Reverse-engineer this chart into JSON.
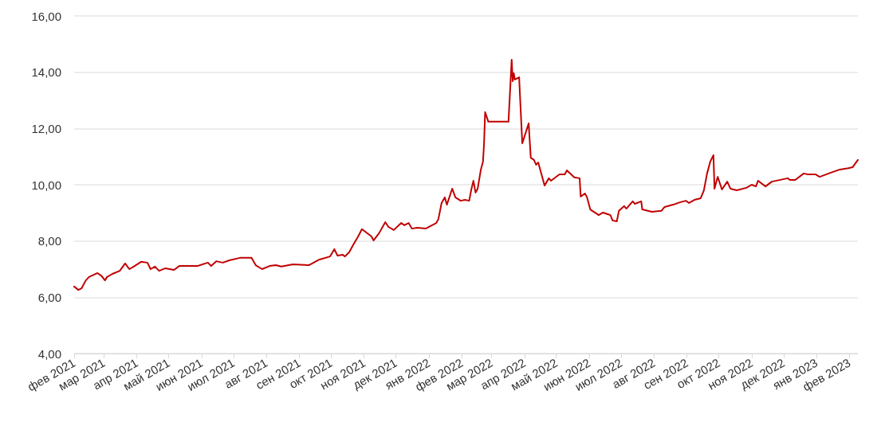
{
  "chart_data": {
    "type": "line",
    "x": [
      "2021-02-01",
      "2021-02-05",
      "2021-02-08",
      "2021-02-12",
      "2021-02-15",
      "2021-02-23",
      "2021-02-27",
      "2021-03-02",
      "2021-03-04",
      "2021-03-09",
      "2021-03-16",
      "2021-03-21",
      "2021-03-25",
      "2021-03-29",
      "2021-04-05",
      "2021-04-11",
      "2021-04-14",
      "2021-04-18",
      "2021-04-22",
      "2021-04-28",
      "2021-05-06",
      "2021-05-11",
      "2021-05-28",
      "2021-06-07",
      "2021-06-10",
      "2021-06-15",
      "2021-06-21",
      "2021-06-27",
      "2021-07-07",
      "2021-07-18",
      "2021-07-22",
      "2021-07-28",
      "2021-08-04",
      "2021-08-10",
      "2021-08-15",
      "2021-08-26",
      "2021-09-10",
      "2021-09-20",
      "2021-09-30",
      "2021-10-04",
      "2021-10-07",
      "2021-10-12",
      "2021-10-14",
      "2021-10-18",
      "2021-10-22",
      "2021-10-26",
      "2021-10-30",
      "2021-11-08",
      "2021-11-10",
      "2021-11-15",
      "2021-11-21",
      "2021-11-24",
      "2021-11-29",
      "2021-12-06",
      "2021-12-09",
      "2021-12-13",
      "2021-12-16",
      "2021-12-21",
      "2021-12-29",
      "2022-01-08",
      "2022-01-10",
      "2022-01-13",
      "2022-01-16",
      "2022-01-18",
      "2022-01-23",
      "2022-01-26",
      "2022-01-31",
      "2022-02-04",
      "2022-02-08",
      "2022-02-10",
      "2022-02-12",
      "2022-02-14",
      "2022-02-16",
      "2022-02-19",
      "2022-02-21",
      "2022-02-22",
      "2022-02-23",
      "2022-02-26",
      "2022-03-17",
      "2022-03-20",
      "2022-03-21",
      "2022-03-22",
      "2022-03-23",
      "2022-03-27",
      "2022-03-30",
      "2022-04-05",
      "2022-04-07",
      "2022-04-10",
      "2022-04-12",
      "2022-04-14",
      "2022-04-20",
      "2022-04-24",
      "2022-04-26",
      "2022-05-04",
      "2022-05-09",
      "2022-05-11",
      "2022-05-18",
      "2022-05-23",
      "2022-05-24",
      "2022-05-28",
      "2022-05-30",
      "2022-06-02",
      "2022-06-10",
      "2022-06-14",
      "2022-06-21",
      "2022-06-23",
      "2022-06-27",
      "2022-06-29",
      "2022-07-04",
      "2022-07-06",
      "2022-07-12",
      "2022-07-14",
      "2022-07-20",
      "2022-07-21",
      "2022-07-30",
      "2022-08-08",
      "2022-08-11",
      "2022-08-19",
      "2022-08-26",
      "2022-08-31",
      "2022-09-03",
      "2022-09-08",
      "2022-09-14",
      "2022-09-17",
      "2022-09-20",
      "2022-09-23",
      "2022-09-26",
      "2022-09-27",
      "2022-09-30",
      "2022-10-04",
      "2022-10-09",
      "2022-10-12",
      "2022-10-18",
      "2022-10-27",
      "2022-11-01",
      "2022-11-05",
      "2022-11-07",
      "2022-11-14",
      "2022-11-20",
      "2022-12-05",
      "2022-12-07",
      "2022-12-12",
      "2022-12-20",
      "2022-12-24",
      "2022-12-31",
      "2023-01-04",
      "2023-01-14",
      "2023-01-23",
      "2023-01-31",
      "2023-02-04",
      "2023-02-09"
    ],
    "series": [
      {
        "color": "#c00000",
        "values": [
          6.38,
          6.26,
          6.32,
          6.6,
          6.72,
          6.86,
          6.75,
          6.6,
          6.72,
          6.83,
          6.94,
          7.2,
          7.0,
          7.09,
          7.26,
          7.23,
          7.0,
          7.09,
          6.94,
          7.03,
          6.97,
          7.11,
          7.11,
          7.23,
          7.11,
          7.28,
          7.23,
          7.31,
          7.4,
          7.4,
          7.14,
          7.0,
          7.11,
          7.14,
          7.09,
          7.17,
          7.14,
          7.34,
          7.45,
          7.71,
          7.48,
          7.51,
          7.45,
          7.6,
          7.88,
          8.13,
          8.42,
          8.16,
          8.02,
          8.27,
          8.67,
          8.5,
          8.39,
          8.64,
          8.56,
          8.64,
          8.44,
          8.47,
          8.44,
          8.64,
          8.78,
          9.35,
          9.55,
          9.29,
          9.86,
          9.55,
          9.43,
          9.46,
          9.43,
          9.83,
          10.14,
          9.72,
          9.86,
          10.54,
          10.82,
          11.47,
          12.58,
          12.24,
          12.24,
          14.44,
          13.68,
          13.96,
          13.74,
          13.82,
          11.47,
          12.18,
          10.96,
          10.88,
          10.71,
          10.79,
          9.97,
          10.23,
          10.14,
          10.37,
          10.37,
          10.51,
          10.26,
          10.23,
          9.58,
          9.69,
          9.55,
          9.12,
          8.92,
          9.01,
          8.92,
          8.73,
          8.7,
          9.07,
          9.24,
          9.15,
          9.41,
          9.32,
          9.41,
          9.12,
          9.04,
          9.07,
          9.21,
          9.29,
          9.38,
          9.43,
          9.35,
          9.46,
          9.52,
          9.8,
          10.4,
          10.82,
          11.05,
          9.86,
          10.28,
          9.83,
          10.11,
          9.86,
          9.8,
          9.89,
          10.0,
          9.94,
          10.14,
          9.94,
          10.11,
          10.23,
          10.17,
          10.17,
          10.4,
          10.37,
          10.37,
          10.28,
          10.42,
          10.54,
          10.59,
          10.62,
          10.88
        ]
      }
    ],
    "xlim": [
      "2021-02-01",
      "2023-02-09"
    ],
    "xticks": [
      {
        "value": "2021-02-01",
        "label": "фев 2021"
      },
      {
        "value": "2021-03-01",
        "label": "мар 2021"
      },
      {
        "value": "2021-04-01",
        "label": "апр 2021"
      },
      {
        "value": "2021-05-01",
        "label": "май 2021"
      },
      {
        "value": "2021-06-01",
        "label": "июн 2021"
      },
      {
        "value": "2021-07-01",
        "label": "июл 2021"
      },
      {
        "value": "2021-08-01",
        "label": "авг 2021"
      },
      {
        "value": "2021-09-01",
        "label": "сен 2021"
      },
      {
        "value": "2021-10-01",
        "label": "окт 2021"
      },
      {
        "value": "2021-11-01",
        "label": "ноя 2021"
      },
      {
        "value": "2021-12-01",
        "label": "дек 2021"
      },
      {
        "value": "2022-01-01",
        "label": "янв 2022"
      },
      {
        "value": "2022-02-01",
        "label": "фев 2022"
      },
      {
        "value": "2022-03-01",
        "label": "мар 2022"
      },
      {
        "value": "2022-04-01",
        "label": "апр 2022"
      },
      {
        "value": "2022-05-01",
        "label": "май 2022"
      },
      {
        "value": "2022-06-01",
        "label": "июн 2022"
      },
      {
        "value": "2022-07-01",
        "label": "июл 2022"
      },
      {
        "value": "2022-08-01",
        "label": "авг 2022"
      },
      {
        "value": "2022-09-01",
        "label": "сен 2022"
      },
      {
        "value": "2022-10-01",
        "label": "окт 2022"
      },
      {
        "value": "2022-11-01",
        "label": "ноя 2022"
      },
      {
        "value": "2022-12-01",
        "label": "дек 2022"
      },
      {
        "value": "2023-01-01",
        "label": "янв 2023"
      },
      {
        "value": "2023-02-01",
        "label": "фев 2023"
      }
    ],
    "ylim": [
      4,
      16
    ],
    "yticks": [
      {
        "value": 4,
        "label": "4,00"
      },
      {
        "value": 6,
        "label": "6,00"
      },
      {
        "value": 8,
        "label": "8,00"
      },
      {
        "value": 10,
        "label": "10,00"
      },
      {
        "value": 12,
        "label": "12,00"
      },
      {
        "value": 14,
        "label": "14,00"
      },
      {
        "value": 16,
        "label": "16,00"
      }
    ],
    "grid": "y",
    "marker": "none",
    "line_style": "solid"
  }
}
